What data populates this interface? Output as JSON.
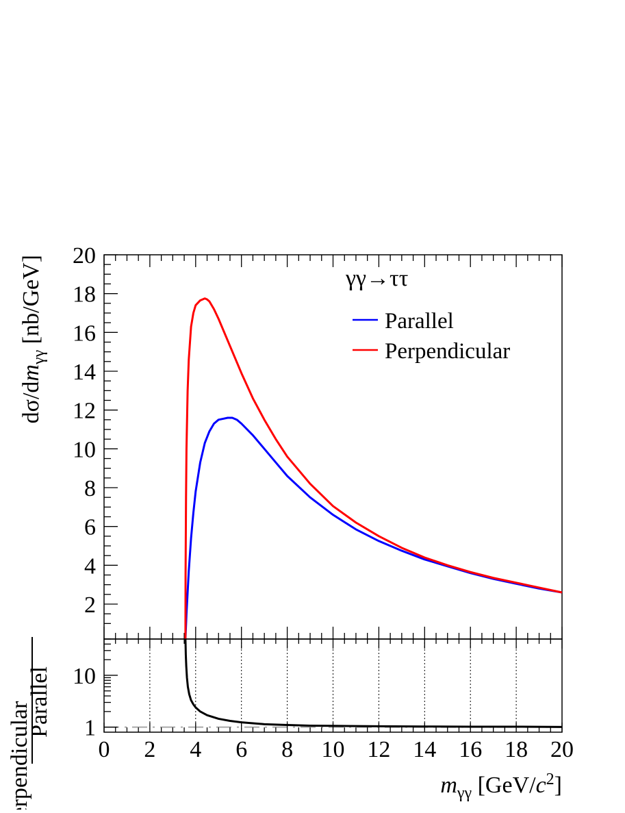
{
  "chart_data": [
    {
      "type": "line",
      "process_label": "γγ→ττ",
      "ylabel": "dσ/dm_γγ [nb/GeV]",
      "xlim": [
        0,
        20
      ],
      "ylim": [
        0.2,
        20
      ],
      "y_ticks": [
        2,
        4,
        6,
        8,
        10,
        12,
        14,
        16,
        18,
        20
      ],
      "legend_placement": "top-right",
      "series": [
        {
          "name": "Parallel",
          "color": "#0000ff",
          "x": [
            3.554,
            3.6,
            3.7,
            3.8,
            3.9,
            4.0,
            4.2,
            4.4,
            4.6,
            4.8,
            5.0,
            5.2,
            5.4,
            5.6,
            5.8,
            6.0,
            6.5,
            7.0,
            7.5,
            8.0,
            9.0,
            10.0,
            11.0,
            12.0,
            13.0,
            14.0,
            15.0,
            16.0,
            17.0,
            18.0,
            19.0,
            20.0
          ],
          "y": [
            0.2,
            1.5,
            3.7,
            5.4,
            6.7,
            7.8,
            9.3,
            10.3,
            10.9,
            11.3,
            11.5,
            11.55,
            11.6,
            11.6,
            11.5,
            11.3,
            10.7,
            10.0,
            9.3,
            8.6,
            7.5,
            6.6,
            5.85,
            5.25,
            4.75,
            4.3,
            3.95,
            3.6,
            3.3,
            3.05,
            2.8,
            2.6
          ]
        },
        {
          "name": "Perpendicular",
          "color": "#ff0000",
          "x": [
            3.554,
            3.56,
            3.58,
            3.6,
            3.65,
            3.7,
            3.8,
            3.9,
            4.0,
            4.2,
            4.4,
            4.5,
            4.6,
            4.8,
            5.0,
            5.5,
            6.0,
            6.5,
            7.0,
            7.5,
            8.0,
            9.0,
            10.0,
            11.0,
            12.0,
            13.0,
            14.0,
            15.0,
            16.0,
            17.0,
            18.0,
            19.0,
            20.0
          ],
          "y": [
            0.2,
            3.5,
            7.5,
            10.0,
            13.0,
            14.6,
            16.3,
            17.0,
            17.4,
            17.65,
            17.75,
            17.7,
            17.6,
            17.2,
            16.7,
            15.3,
            13.9,
            12.6,
            11.5,
            10.5,
            9.6,
            8.2,
            7.05,
            6.2,
            5.5,
            4.9,
            4.4,
            4.0,
            3.65,
            3.35,
            3.1,
            2.85,
            2.6
          ]
        }
      ]
    },
    {
      "type": "line",
      "ylabel_numerator": "Perpendicular",
      "ylabel_denominator": "Parallel",
      "xlabel": "m_γγ [GeV/c²]",
      "xlim": [
        0,
        20
      ],
      "x_ticks": [
        0,
        2,
        4,
        6,
        8,
        10,
        12,
        14,
        16,
        18,
        20
      ],
      "y_scale": "log",
      "ylim": [
        0.8,
        50
      ],
      "y_ticks": [
        1,
        10
      ],
      "grid": "vertical dotted",
      "reference_line": {
        "y": 1,
        "color": "#aaaaaa",
        "style": "dash-dot"
      },
      "series": [
        {
          "name": "",
          "color": "#000000",
          "x": [
            3.554,
            3.56,
            3.57,
            3.59,
            3.62,
            3.66,
            3.72,
            3.8,
            3.9,
            4.0,
            4.2,
            4.5,
            5.0,
            5.5,
            6.0,
            7.0,
            8.0,
            9.0,
            10.0,
            12.0,
            14.0,
            16.0,
            18.0,
            20.0
          ],
          "y": [
            50,
            40,
            25,
            15,
            9,
            6,
            4.3,
            3.3,
            2.75,
            2.4,
            2.0,
            1.7,
            1.45,
            1.32,
            1.24,
            1.14,
            1.1,
            1.07,
            1.06,
            1.04,
            1.03,
            1.02,
            1.02,
            1.01
          ]
        }
      ]
    }
  ]
}
